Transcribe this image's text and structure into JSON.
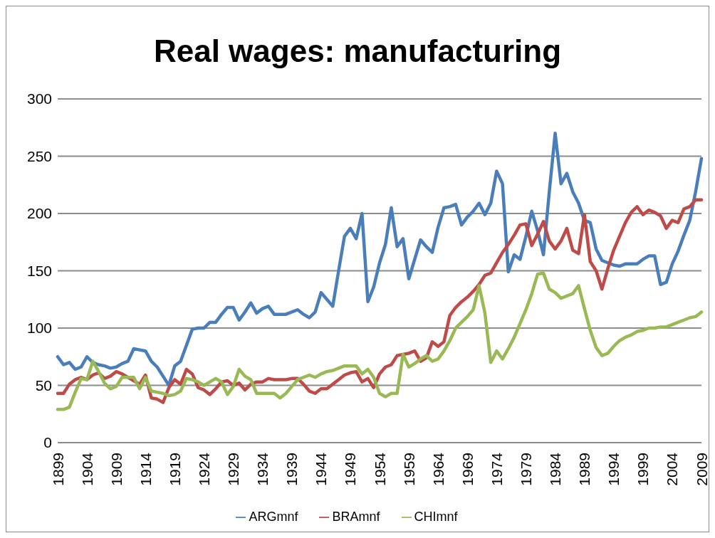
{
  "chart_data": {
    "type": "line",
    "title": "Real wages: manufacturing",
    "categories": [
      "1899",
      null,
      null,
      null,
      null,
      "1904",
      null,
      null,
      null,
      null,
      "1909",
      null,
      null,
      null,
      null,
      "1914",
      null,
      null,
      null,
      null,
      "1919",
      null,
      null,
      null,
      null,
      "1924",
      null,
      null,
      null,
      null,
      "1929",
      null,
      null,
      null,
      null,
      "1934",
      null,
      null,
      null,
      null,
      "1939",
      null,
      null,
      null,
      null,
      "1944",
      null,
      null,
      null,
      null,
      "1949",
      null,
      null,
      null,
      null,
      "1954",
      null,
      null,
      null,
      null,
      "1959",
      null,
      null,
      null,
      null,
      "1964",
      null,
      null,
      null,
      null,
      "1969",
      null,
      null,
      null,
      null,
      "1974",
      null,
      null,
      null,
      null,
      "1979",
      null,
      null,
      null,
      null,
      "1984",
      null,
      null,
      null,
      null,
      "1989",
      null,
      null,
      null,
      null,
      "1994",
      null,
      null,
      null,
      null,
      "1999",
      null,
      null,
      null,
      null,
      "2004",
      null,
      null,
      null,
      null,
      "2009"
    ],
    "series": [
      {
        "name": "ARGmnf",
        "color": "#4a7ebb",
        "values": [
          75,
          68,
          70,
          64,
          66,
          75,
          70,
          68,
          67,
          65,
          66,
          69,
          71,
          82,
          81,
          80,
          71,
          66,
          58,
          50,
          67,
          71,
          85,
          99,
          100,
          100,
          105,
          105,
          112,
          118,
          118,
          107,
          114,
          122,
          113,
          117,
          119,
          112,
          112,
          112,
          114,
          116,
          112,
          109,
          114,
          131,
          125,
          119,
          150,
          180,
          187,
          178,
          200,
          123,
          136,
          157,
          173,
          205,
          171,
          178,
          143,
          160,
          177,
          171,
          166,
          188,
          205,
          206,
          208,
          190,
          197,
          202,
          209,
          199,
          209,
          237,
          226,
          149,
          164,
          160,
          180,
          202,
          185,
          164,
          219,
          270,
          226,
          235,
          219,
          209,
          194,
          192,
          169,
          159,
          157,
          155,
          154,
          156,
          156,
          156,
          160,
          163,
          163,
          138,
          140,
          156,
          167,
          181,
          194,
          219,
          248
        ]
      },
      {
        "name": "BRAmnf",
        "color": "#be4b48",
        "values": [
          43,
          43,
          51,
          55,
          57,
          55,
          59,
          61,
          56,
          58,
          62,
          60,
          57,
          54,
          51,
          59,
          39,
          38,
          35,
          48,
          55,
          51,
          64,
          60,
          48,
          46,
          42,
          47,
          53,
          54,
          50,
          52,
          46,
          51,
          53,
          53,
          56,
          55,
          55,
          55,
          56,
          56,
          51,
          45,
          43,
          47,
          47,
          51,
          55,
          59,
          61,
          62,
          53,
          56,
          48,
          60,
          66,
          68,
          76,
          77,
          78,
          80,
          71,
          74,
          88,
          84,
          88,
          111,
          118,
          123,
          127,
          132,
          138,
          146,
          148,
          157,
          166,
          173,
          181,
          190,
          191,
          172,
          182,
          193,
          176,
          169,
          176,
          187,
          168,
          165,
          199,
          158,
          150,
          134,
          152,
          168,
          180,
          192,
          201,
          206,
          199,
          203,
          201,
          198,
          187,
          194,
          192,
          204,
          206,
          212,
          212
        ]
      },
      {
        "name": "CHImnf",
        "color": "#98b954",
        "values": [
          29,
          29,
          31,
          44,
          56,
          55,
          71,
          62,
          52,
          47,
          49,
          57,
          57,
          57,
          47,
          57,
          45,
          44,
          43,
          41,
          42,
          45,
          56,
          55,
          53,
          50,
          53,
          56,
          53,
          42,
          49,
          64,
          58,
          55,
          43,
          43,
          43,
          43,
          39,
          43,
          49,
          55,
          57,
          59,
          57,
          60,
          62,
          63,
          65,
          67,
          67,
          67,
          60,
          64,
          57,
          43,
          40,
          43,
          43,
          77,
          66,
          69,
          73,
          76,
          71,
          73,
          80,
          89,
          100,
          105,
          110,
          116,
          137,
          113,
          70,
          80,
          73,
          82,
          92,
          104,
          116,
          130,
          147,
          148,
          134,
          131,
          126,
          128,
          130,
          137,
          117,
          98,
          83,
          76,
          78,
          84,
          89,
          92,
          94,
          97,
          98,
          100,
          100,
          101,
          101,
          103,
          105,
          107,
          109,
          110,
          114
        ]
      }
    ],
    "ylim": [
      0,
      300
    ],
    "yticks": [
      0,
      50,
      100,
      150,
      200,
      250,
      300
    ],
    "grid": "y",
    "legend": "bottom"
  }
}
